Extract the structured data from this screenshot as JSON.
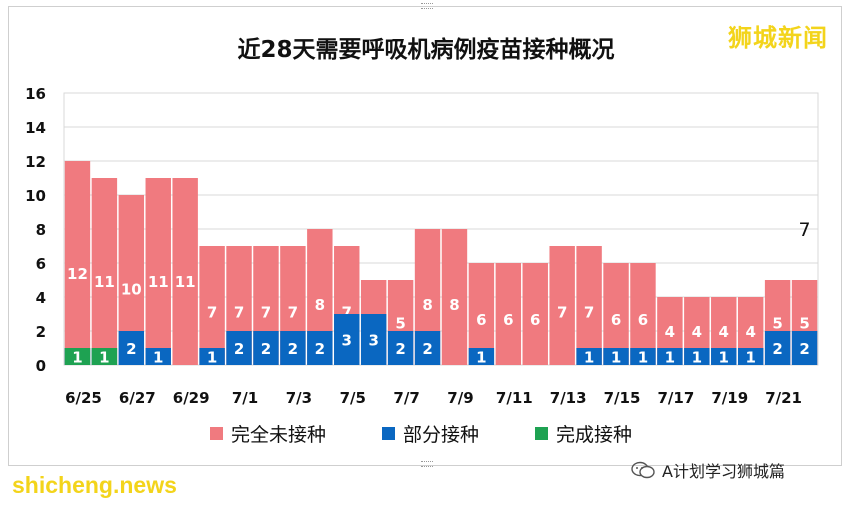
{
  "brand": "狮城新闻",
  "wechat_label": "A计划学习狮城篇",
  "site": "shicheng.news",
  "colors": {
    "unvaccinated": "#f07a7f",
    "partial": "#0a67c1",
    "full": "#1ea252"
  },
  "chart_data": {
    "type": "bar",
    "stacked": true,
    "title": "近28天需要呼吸机病例疫苗接种概况",
    "categories": [
      "6/25",
      "6/26",
      "6/27",
      "6/28",
      "6/29",
      "6/30",
      "7/1",
      "7/2",
      "7/3",
      "7/4",
      "7/5",
      "7/6",
      "7/7",
      "7/8",
      "7/9",
      "7/10",
      "7/11",
      "7/12",
      "7/13",
      "7/14",
      "7/15",
      "7/16",
      "7/17",
      "7/18",
      "7/19",
      "7/20",
      "7/21",
      "7/22"
    ],
    "tick_labels": [
      "6/25",
      "6/27",
      "6/29",
      "7/1",
      "7/3",
      "7/5",
      "7/7",
      "7/9",
      "7/11",
      "7/13",
      "7/15",
      "7/17",
      "7/19",
      "7/21"
    ],
    "series": [
      {
        "name": "完全未接种",
        "values": [
          12,
          11,
          10,
          11,
          11,
          7,
          7,
          7,
          7,
          8,
          7,
          5,
          5,
          8,
          8,
          6,
          6,
          6,
          7,
          7,
          6,
          6,
          4,
          4,
          4,
          4,
          5,
          5
        ]
      },
      {
        "name": "部分接种",
        "values": [
          1,
          1,
          2,
          1,
          0,
          1,
          2,
          2,
          2,
          2,
          3,
          3,
          2,
          2,
          0,
          1,
          0,
          0,
          0,
          1,
          1,
          1,
          1,
          1,
          1,
          1,
          2,
          2
        ]
      },
      {
        "name": "完成接种",
        "values": [
          1,
          1,
          0,
          0,
          0,
          0,
          0,
          0,
          0,
          0,
          0,
          0,
          0,
          0,
          0,
          0,
          0,
          0,
          0,
          0,
          0,
          0,
          0,
          0,
          0,
          0,
          0,
          0
        ]
      }
    ],
    "annotation": {
      "category": "7/22",
      "text": "7"
    },
    "ylim": [
      0,
      16
    ],
    "yticks": [
      0,
      2,
      4,
      6,
      8,
      10,
      12,
      14,
      16
    ],
    "grid": true,
    "legend": "bottom"
  }
}
